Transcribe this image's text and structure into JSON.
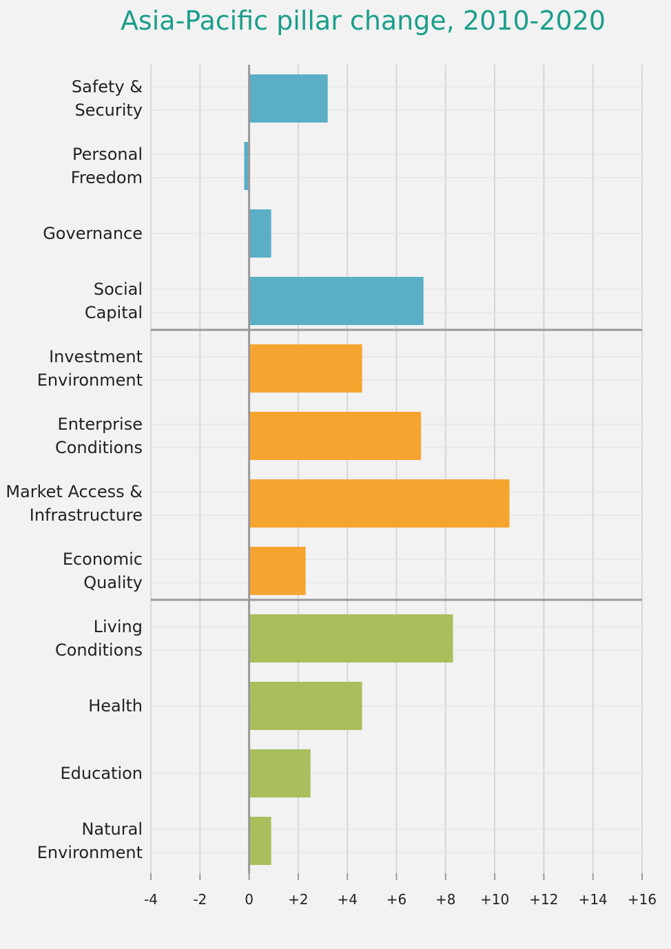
{
  "chart_data": {
    "type": "bar",
    "orientation": "horizontal",
    "title": "Asia-Pacific pillar change, 2010-2020",
    "xlim": [
      -4,
      16
    ],
    "tick_values": [
      -4,
      -2,
      0,
      2,
      4,
      6,
      8,
      10,
      12,
      14,
      16
    ],
    "tick_labels": [
      "-4",
      "-2",
      "0",
      "+2",
      "+4",
      "+6",
      "+8",
      "+10",
      "+12",
      "+14",
      "+16"
    ],
    "grid": true,
    "categories": [
      [
        "Safety &",
        "Security"
      ],
      [
        "Personal",
        "Freedom"
      ],
      [
        "Governance"
      ],
      [
        "Social",
        "Capital"
      ],
      [
        "Investment",
        "Environment"
      ],
      [
        "Enterprise",
        "Conditions"
      ],
      [
        "Market Access &",
        "Infrastructure"
      ],
      [
        "Economic",
        "Quality"
      ],
      [
        "Living",
        "Conditions"
      ],
      [
        "Health"
      ],
      [
        "Education"
      ],
      [
        "Natural",
        "Environment"
      ]
    ],
    "values": [
      3.2,
      -0.2,
      0.9,
      7.1,
      4.6,
      7.0,
      10.6,
      2.3,
      8.3,
      4.6,
      2.5,
      0.9
    ],
    "groups": [
      0,
      0,
      0,
      0,
      1,
      1,
      1,
      1,
      2,
      2,
      2,
      2
    ],
    "group_colors": [
      "#5aafc7",
      "#f5a430",
      "#a8bf5c"
    ]
  }
}
